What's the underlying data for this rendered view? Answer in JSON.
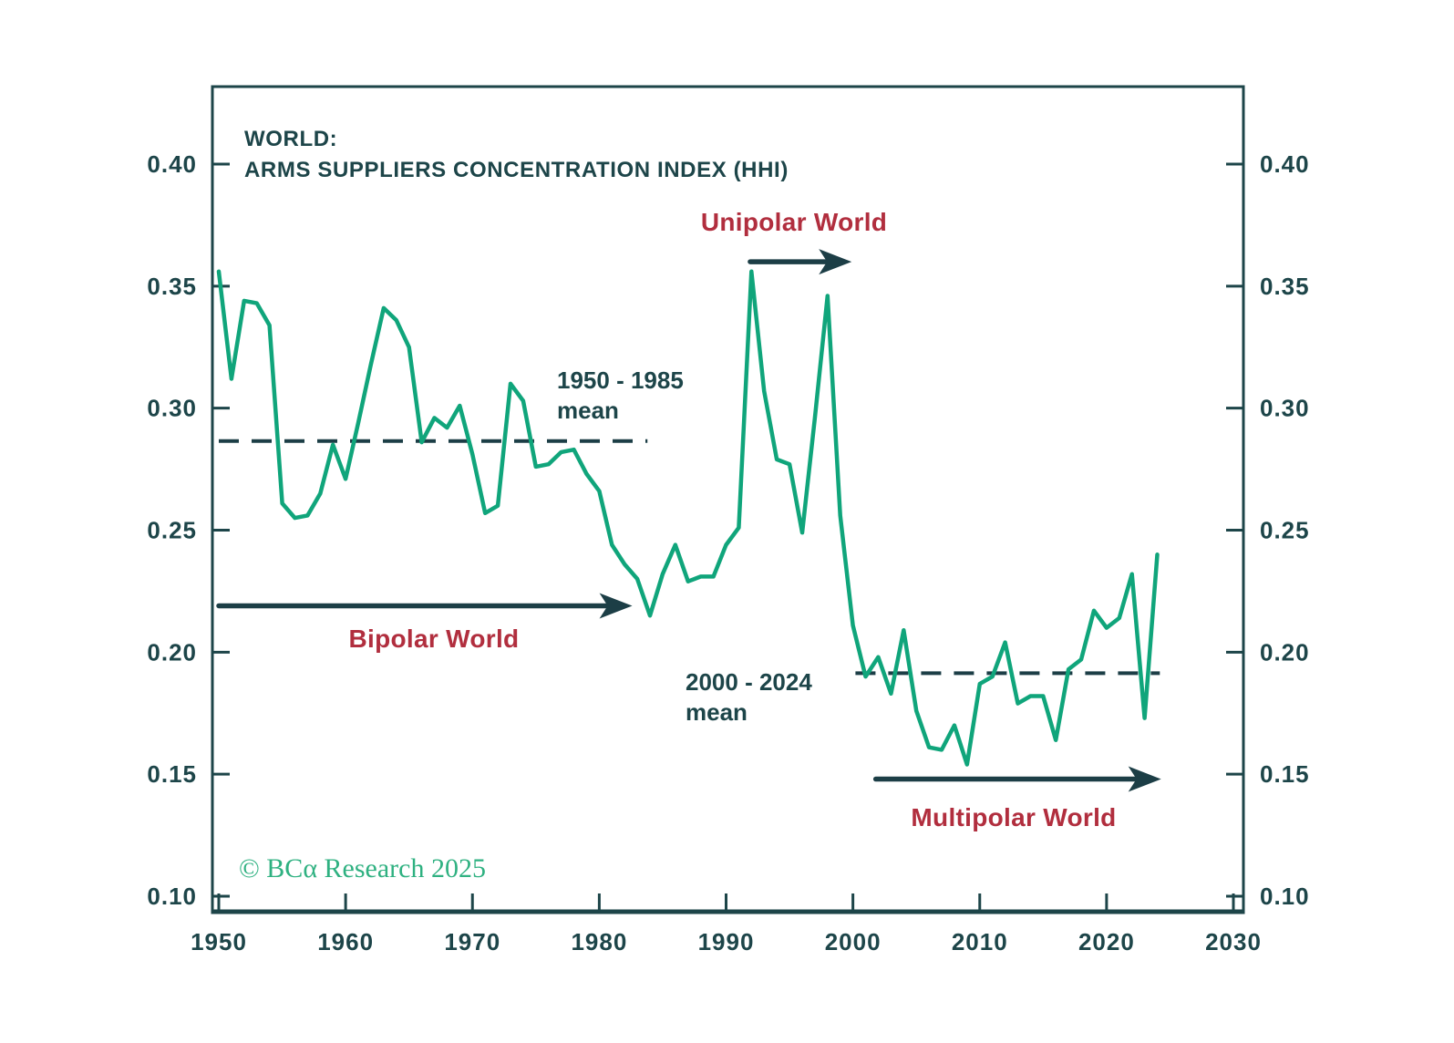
{
  "header": {
    "title_line1": "WORLD:",
    "title_line2": "ARMS SUPPLIERS CONCENTRATION INDEX (HHI)"
  },
  "credit": {
    "text": "© BCα Research 2025"
  },
  "colors": {
    "line_green": "#10a57b",
    "text_dark_teal": "#1d4549",
    "arrow_dark": "#1c3e46",
    "annotation_red": "#b12e3e",
    "credit_green": "#2fb181"
  },
  "chart_data": {
    "type": "line",
    "title": "WORLD: ARMS SUPPLIERS CONCENTRATION INDEX (HHI)",
    "xlabel": "",
    "ylabel": "",
    "grid": false,
    "legend": "none",
    "xlim": [
      1949.5,
      2030.8
    ],
    "ylim": [
      0.094,
      0.432
    ],
    "x_ticks": [
      1950,
      1960,
      1970,
      1980,
      1990,
      2000,
      2010,
      2020,
      2030
    ],
    "y_ticks": [
      0.4,
      0.35,
      0.3,
      0.25,
      0.2,
      0.15,
      0.1
    ],
    "y_tick_sides": "both",
    "x": [
      1950,
      1951,
      1952,
      1953,
      1954,
      1955,
      1956,
      1957,
      1958,
      1959,
      1960,
      1961,
      1962,
      1963,
      1964,
      1965,
      1966,
      1967,
      1968,
      1969,
      1970,
      1971,
      1972,
      1973,
      1974,
      1975,
      1976,
      1977,
      1978,
      1979,
      1980,
      1981,
      1982,
      1983,
      1984,
      1985,
      1986,
      1987,
      1988,
      1989,
      1990,
      1991,
      1992,
      1993,
      1994,
      1995,
      1996,
      1997,
      1998,
      1999,
      2000,
      2001,
      2002,
      2003,
      2004,
      2005,
      2006,
      2007,
      2008,
      2009,
      2010,
      2011,
      2012,
      2013,
      2014,
      2015,
      2016,
      2017,
      2018,
      2019,
      2020,
      2021,
      2022,
      2023,
      2024
    ],
    "values": [
      0.356,
      0.312,
      0.344,
      0.343,
      0.334,
      0.261,
      0.255,
      0.256,
      0.265,
      0.285,
      0.271,
      0.294,
      0.318,
      0.341,
      0.336,
      0.325,
      0.286,
      0.296,
      0.292,
      0.301,
      0.281,
      0.257,
      0.26,
      0.31,
      0.303,
      0.276,
      0.277,
      0.282,
      0.283,
      0.273,
      0.266,
      0.244,
      0.236,
      0.23,
      0.215,
      0.232,
      0.244,
      0.229,
      0.231,
      0.231,
      0.244,
      0.251,
      0.356,
      0.307,
      0.279,
      0.277,
      0.249,
      0.296,
      0.346,
      0.256,
      0.211,
      0.19,
      0.198,
      0.183,
      0.209,
      0.176,
      0.161,
      0.16,
      0.17,
      0.154,
      0.187,
      0.19,
      0.204,
      0.179,
      0.182,
      0.182,
      0.164,
      0.193,
      0.197,
      0.217,
      0.21,
      0.214,
      0.232,
      0.173,
      0.24
    ],
    "mean_lines": [
      {
        "label_line1": "1950 - 1985",
        "label_line2": "mean",
        "value": 0.2865,
        "from_year": 1950.0,
        "to_year": 1983.8
      },
      {
        "label_line1": "2000 - 2024",
        "label_line2": "mean",
        "value": 0.1914,
        "from_year": 2000.2,
        "to_year": 2024.2
      }
    ],
    "annotations": {
      "unipolar": {
        "label": "Unipolar World",
        "arrow_from": 1991.9,
        "arrow_to": 1999.9,
        "arrow_value": 0.36
      },
      "bipolar": {
        "label": "Bipolar World",
        "arrow_from": 1950.0,
        "arrow_to": 1982.6,
        "arrow_value": 0.219
      },
      "multipolar": {
        "label": "Multipolar World",
        "arrow_from": 2001.8,
        "arrow_to": 2024.3,
        "arrow_value": 0.148
      }
    }
  }
}
